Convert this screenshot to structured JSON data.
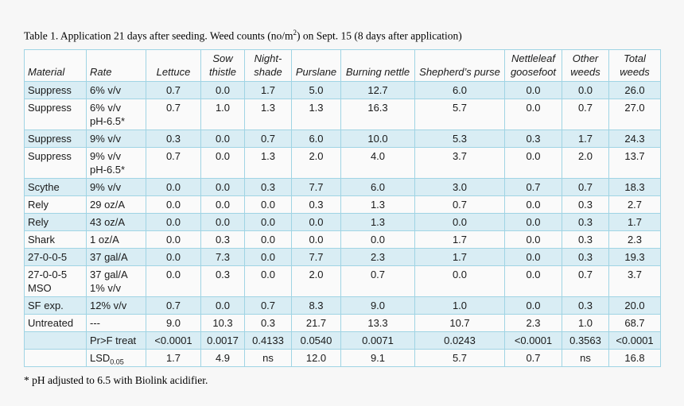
{
  "page": {
    "title": {
      "prefix": "Table 1. Application 21 days after seeding. Weed counts (no/m",
      "sup": "2",
      "suffix": ") on Sept. 15 (8 days after application)"
    },
    "footnote": "* pH adjusted to 6.5 with Biolink acidifier."
  },
  "colors": {
    "page_bg": "#f7f7f7",
    "row_stripe": "#d9edf4",
    "row_plain": "#fafafa",
    "border": "#a0d4e4",
    "text": "#1a1a1a"
  },
  "table": {
    "columns": [
      "Material",
      "Rate",
      "Lettuce",
      "Sow thistle",
      "Night-shade",
      "Purslane",
      "Burning nettle",
      "Shepherd’s purse",
      "Nettleleaf goosefoot",
      "Other weeds",
      "Total weeds"
    ],
    "rows": [
      {
        "material": "Suppress",
        "rate": "6% v/v",
        "values": [
          "0.7",
          "0.0",
          "1.7",
          "5.0",
          "12.7",
          "6.0",
          "0.0",
          "0.0",
          "26.0"
        ]
      },
      {
        "material": "Suppress",
        "rate": "6% v/v\npH-6.5*",
        "values": [
          "0.7",
          "1.0",
          "1.3",
          "1.3",
          "16.3",
          "5.7",
          "0.0",
          "0.7",
          "27.0"
        ]
      },
      {
        "material": "Suppress",
        "rate": "9% v/v",
        "values": [
          "0.3",
          "0.0",
          "0.7",
          "6.0",
          "10.0",
          "5.3",
          "0.3",
          "1.7",
          "24.3"
        ]
      },
      {
        "material": "Suppress",
        "rate": "9% v/v\npH-6.5*",
        "values": [
          "0.7",
          "0.0",
          "1.3",
          "2.0",
          "4.0",
          "3.7",
          "0.0",
          "2.0",
          "13.7"
        ]
      },
      {
        "material": "Scythe",
        "rate": "9% v/v",
        "values": [
          "0.0",
          "0.0",
          "0.3",
          "7.7",
          "6.0",
          "3.0",
          "0.7",
          "0.7",
          "18.3"
        ]
      },
      {
        "material": "Rely",
        "rate": "29 oz/A",
        "values": [
          "0.0",
          "0.0",
          "0.0",
          "0.3",
          "1.3",
          "0.7",
          "0.0",
          "0.3",
          "2.7"
        ]
      },
      {
        "material": "Rely",
        "rate": "43 oz/A",
        "values": [
          "0.0",
          "0.0",
          "0.0",
          "0.0",
          "1.3",
          "0.0",
          "0.0",
          "0.3",
          "1.7"
        ]
      },
      {
        "material": "Shark",
        "rate": "1 oz/A",
        "values": [
          "0.0",
          "0.3",
          "0.0",
          "0.0",
          "0.0",
          "1.7",
          "0.0",
          "0.3",
          "2.3"
        ]
      },
      {
        "material": "27-0-0-5",
        "rate": "37 gal/A",
        "values": [
          "0.0",
          "7.3",
          "0.0",
          "7.7",
          "2.3",
          "1.7",
          "0.0",
          "0.3",
          "19.3"
        ]
      },
      {
        "material": "27-0-0-5\nMSO",
        "rate": "37 gal/A\n1% v/v",
        "values": [
          "0.0",
          "0.3",
          "0.0",
          "2.0",
          "0.7",
          "0.0",
          "0.0",
          "0.7",
          "3.7"
        ]
      },
      {
        "material": "SF exp.",
        "rate": "12% v/v",
        "values": [
          "0.7",
          "0.0",
          "0.7",
          "8.3",
          "9.0",
          "1.0",
          "0.0",
          "0.3",
          "20.0"
        ]
      },
      {
        "material": "Untreated",
        "rate": "---",
        "values": [
          "9.0",
          "10.3",
          "0.3",
          "21.7",
          "13.3",
          "10.7",
          "2.3",
          "1.0",
          "68.7"
        ]
      },
      {
        "material": "",
        "rate": "Pr>F treat",
        "values": [
          "<0.0001",
          "0.0017",
          "0.4133",
          "0.0540",
          "0.0071",
          "0.0243",
          "<0.0001",
          "0.3563",
          "<0.0001"
        ]
      },
      {
        "material": "",
        "rate": "LSD",
        "rate_sub": "0.05",
        "values": [
          "1.7",
          "4.9",
          "ns",
          "12.0",
          "9.1",
          "5.7",
          "0.7",
          "ns",
          "16.8"
        ]
      }
    ]
  }
}
